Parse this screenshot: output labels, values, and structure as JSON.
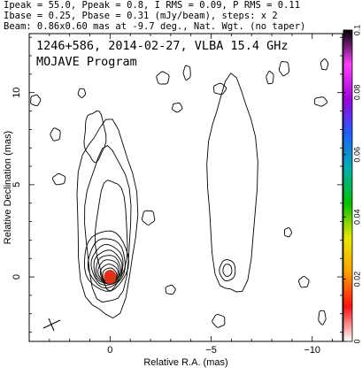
{
  "header": {
    "line1": "Ipeak = 55.0, Ppeak = 0.8, I RMS = 0.09, P RMS = 0.11",
    "line2": "Ibase = 0.25, Pbase = 0.31 (mJy/beam), steps: x 2",
    "line3": "Beam: 0.86x0.60 mas at -9.7 deg., Nat. Wgt. (no taper)"
  },
  "chart_data": {
    "type": "contour",
    "title": "1246+586, 2014-02-27, VLBA 15.4 GHz",
    "subtitle": "MOJAVE Program",
    "xlabel": "Relative R.A. (mas)",
    "ylabel": "Relative Declination (mas)",
    "xlim": [
      4.0,
      -11.5
    ],
    "ylim": [
      -3.5,
      13.2
    ],
    "xticks": [
      0,
      -5,
      -10
    ],
    "xtick_labels": [
      "0",
      "−5",
      "−10"
    ],
    "yticks": [
      0,
      5,
      10
    ],
    "ytick_labels": [
      "0",
      "5",
      "10"
    ],
    "colorbar": {
      "min": 0,
      "max": 0.1,
      "ticks": [
        0,
        0.02,
        0.04,
        0.06,
        0.08,
        0.1
      ],
      "tick_labels": [
        "0",
        "0.02",
        "0.04",
        "0.06",
        "0.08",
        "0.1"
      ],
      "colors": [
        "#ffffff",
        "#ff1010",
        "#ffa000",
        "#e8e800",
        "#00c000",
        "#00b0b0",
        "#2060ff",
        "#a000e0",
        "#ff40ff",
        "#000000"
      ]
    },
    "core": {
      "x": 0,
      "y": 0,
      "peak_mjy_per_beam": 55.0,
      "color": "#e03018"
    },
    "contour_levels": [
      0.25,
      0.5,
      1,
      2,
      4,
      8,
      16,
      32
    ]
  }
}
